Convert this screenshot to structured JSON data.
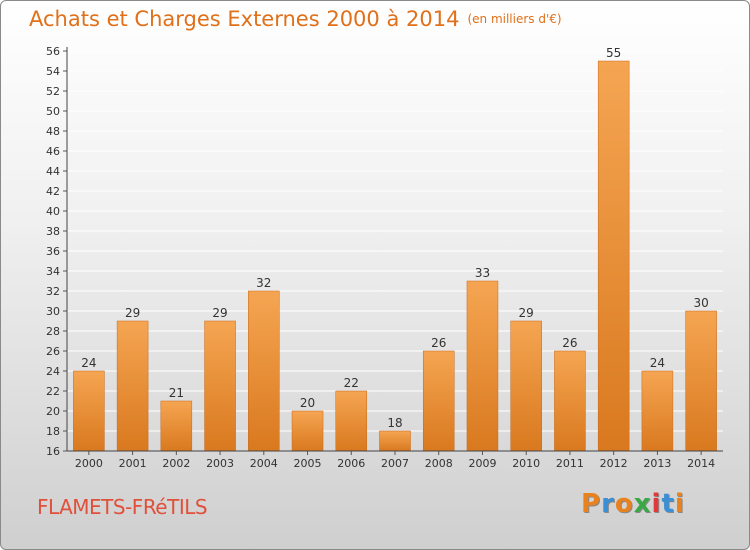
{
  "header": {
    "title": "Achats et Charges Externes 2000 à 2014",
    "unit": "(en milliers d'€)"
  },
  "footer": {
    "commune": "FLAMETS-FRéTILS",
    "logo": "Proxiti",
    "logo_colors": [
      "#e8821e",
      "#3a8fd6",
      "#e8821e",
      "#3aa845",
      "#e03a3a",
      "#3a8fd6",
      "#e8821e"
    ]
  },
  "colors": {
    "bar_light": "#f5a552",
    "bar_dark": "#d9791f",
    "grid": "#ffffff",
    "axis_text": "#333333"
  },
  "chart_data": {
    "type": "bar",
    "title": "Achats et Charges Externes 2000 à 2014",
    "subtitle": "(en milliers d'€)",
    "xlabel": "",
    "ylabel": "",
    "categories": [
      "2000",
      "2001",
      "2002",
      "2003",
      "2004",
      "2005",
      "2006",
      "2007",
      "2008",
      "2009",
      "2010",
      "2011",
      "2012",
      "2013",
      "2014"
    ],
    "values": [
      24,
      29,
      21,
      29,
      32,
      20,
      22,
      18,
      26,
      33,
      29,
      26,
      55,
      24,
      30
    ],
    "ylim": [
      16,
      56
    ],
    "yticks": [
      16,
      18,
      20,
      22,
      24,
      26,
      28,
      30,
      32,
      34,
      36,
      38,
      40,
      42,
      44,
      46,
      48,
      50,
      52,
      54,
      56
    ],
    "grid": true,
    "legend": "none"
  }
}
